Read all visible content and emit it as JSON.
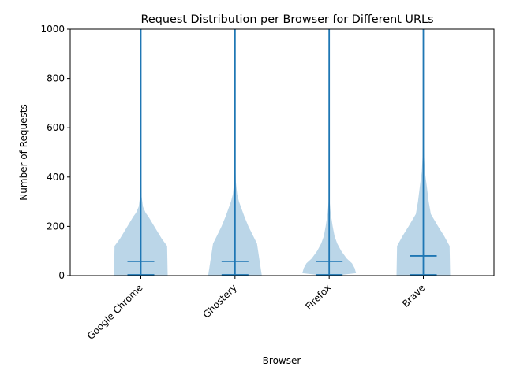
{
  "chart_data": {
    "type": "violin",
    "title": "Request Distribution per Browser for Different URLs",
    "xlabel": "Browser",
    "ylabel": "Number of Requests",
    "ylim": [
      0,
      1000
    ],
    "yticks": [
      0,
      200,
      400,
      600,
      800,
      1000
    ],
    "categories": [
      "Google Chrome",
      "Ghostery",
      "Firefox",
      "Brave"
    ],
    "colors": {
      "body": "#1f77b4",
      "body_opacity": 0.3,
      "lines": "#1f77b4"
    },
    "violins": [
      {
        "name": "Google Chrome",
        "min": 0,
        "max": 1000,
        "mean": 58,
        "median": 3,
        "profile": [
          [
            0,
            1.0
          ],
          [
            120,
            0.98
          ],
          [
            150,
            0.78
          ],
          [
            200,
            0.5
          ],
          [
            240,
            0.28
          ],
          [
            255,
            0.18
          ],
          [
            280,
            0.08
          ],
          [
            320,
            0.03
          ],
          [
            400,
            0.01
          ],
          [
            1000,
            0.0
          ]
        ]
      },
      {
        "name": "Ghostery",
        "min": 0,
        "max": 1000,
        "mean": 58,
        "median": 3,
        "profile": [
          [
            0,
            1.0
          ],
          [
            130,
            0.82
          ],
          [
            160,
            0.68
          ],
          [
            200,
            0.5
          ],
          [
            240,
            0.35
          ],
          [
            270,
            0.25
          ],
          [
            300,
            0.15
          ],
          [
            330,
            0.08
          ],
          [
            380,
            0.03
          ],
          [
            450,
            0.01
          ],
          [
            1000,
            0.0
          ]
        ]
      },
      {
        "name": "Firefox",
        "min": 0,
        "max": 1000,
        "mean": 58,
        "median": 3,
        "profile": [
          [
            0,
            0.2
          ],
          [
            10,
            1.0
          ],
          [
            30,
            0.95
          ],
          [
            50,
            0.85
          ],
          [
            70,
            0.65
          ],
          [
            100,
            0.45
          ],
          [
            130,
            0.3
          ],
          [
            160,
            0.2
          ],
          [
            200,
            0.13
          ],
          [
            250,
            0.06
          ],
          [
            300,
            0.02
          ],
          [
            400,
            0.005
          ],
          [
            1000,
            0.0
          ]
        ]
      },
      {
        "name": "Brave",
        "min": 0,
        "max": 1000,
        "mean": 80,
        "median": 3,
        "profile": [
          [
            0,
            1.0
          ],
          [
            120,
            0.98
          ],
          [
            160,
            0.78
          ],
          [
            200,
            0.55
          ],
          [
            250,
            0.28
          ],
          [
            300,
            0.2
          ],
          [
            370,
            0.12
          ],
          [
            420,
            0.06
          ],
          [
            480,
            0.03
          ],
          [
            550,
            0.01
          ],
          [
            1000,
            0.0
          ]
        ]
      }
    ]
  }
}
